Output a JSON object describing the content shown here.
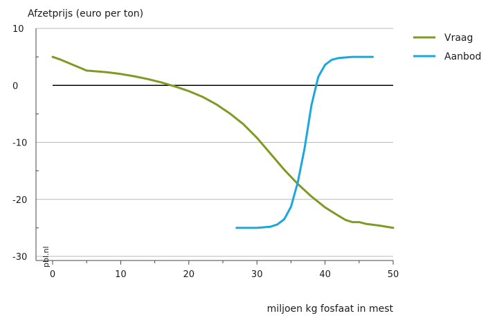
{
  "chart_data": {
    "type": "line",
    "title": "",
    "ylabel": "Afzetprijs (euro per ton)",
    "xlabel": "miljoen kg fosfaat in mest",
    "xlim": [
      0,
      50
    ],
    "ylim": [
      -30,
      10
    ],
    "xticks": [
      "0",
      "10",
      "20",
      "30",
      "40",
      "50"
    ],
    "yticks": [
      "10",
      "0",
      "-10",
      "-20",
      "-30"
    ],
    "xtick_values": [
      0,
      10,
      20,
      30,
      40,
      50
    ],
    "ytick_values": [
      10,
      0,
      -10,
      -20,
      -30
    ],
    "grid": "horizontal",
    "legend_position": "top-right",
    "watermark": "pbl.nl",
    "series": [
      {
        "name": "Vraag",
        "color": "#7d9a22",
        "points": [
          [
            0,
            5
          ],
          [
            1,
            4.6
          ],
          [
            2,
            4.1
          ],
          [
            3,
            3.6
          ],
          [
            4,
            3.1
          ],
          [
            5,
            2.6
          ],
          [
            8,
            2.3
          ],
          [
            10,
            2.0
          ],
          [
            12,
            1.6
          ],
          [
            14,
            1.1
          ],
          [
            16,
            0.5
          ],
          [
            18,
            -0.2
          ],
          [
            20,
            -1.0
          ],
          [
            22,
            -2.0
          ],
          [
            24,
            -3.3
          ],
          [
            26,
            -4.9
          ],
          [
            28,
            -6.8
          ],
          [
            30,
            -9.2
          ],
          [
            32,
            -12.0
          ],
          [
            34,
            -14.8
          ],
          [
            36,
            -17.3
          ],
          [
            38,
            -19.5
          ],
          [
            40,
            -21.4
          ],
          [
            42,
            -22.9
          ],
          [
            43,
            -23.6
          ],
          [
            44,
            -24.0
          ],
          [
            45,
            -24.0
          ],
          [
            46,
            -24.3
          ],
          [
            48,
            -24.6
          ],
          [
            50,
            -25.0
          ]
        ]
      },
      {
        "name": "Aanbod",
        "color": "#1aa7dd",
        "points": [
          [
            27,
            -25
          ],
          [
            30,
            -25
          ],
          [
            32,
            -24.8
          ],
          [
            33,
            -24.4
          ],
          [
            34,
            -23.5
          ],
          [
            35,
            -21.3
          ],
          [
            36,
            -17.0
          ],
          [
            37,
            -11.0
          ],
          [
            38,
            -3.5
          ],
          [
            39,
            1.5
          ],
          [
            40,
            3.6
          ],
          [
            41,
            4.5
          ],
          [
            42,
            4.8
          ],
          [
            44,
            5.0
          ],
          [
            47,
            5.0
          ]
        ]
      }
    ]
  }
}
